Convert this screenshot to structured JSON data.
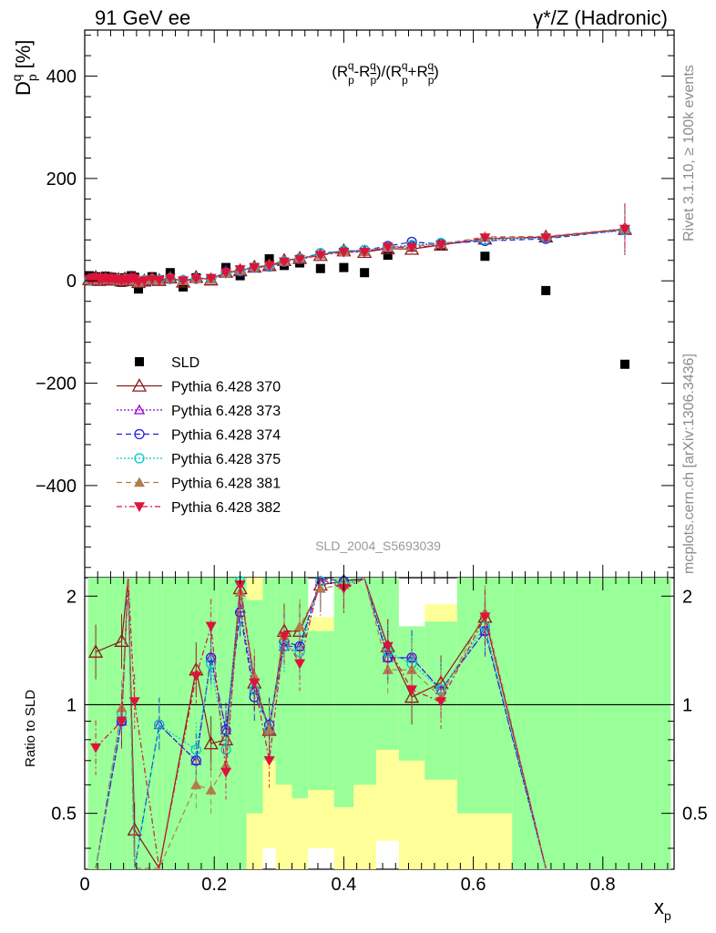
{
  "header": {
    "left_title": "91 GeV ee",
    "right_title": "γ*/Z (Hadronic)"
  },
  "side_labels": {
    "rivet": "Rivet 3.1.10, ≥ 100k events",
    "mcplots": "mcplots.cern.ch [arXiv:1306.3436]"
  },
  "watermark": "SLD_2004_S5693039",
  "colors": {
    "SLD": "#000000",
    "p370": "#8b1a1a",
    "p373": "#9400d3",
    "p374": "#1f1fd6",
    "p375": "#00c8c8",
    "p381": "#b07d4f",
    "p382": "#dc143c",
    "band_green": "#99ff99",
    "band_yellow": "#ffff99"
  },
  "chart_data": [
    {
      "type": "scatter",
      "title": "(R_p^q-R_p̄^q)/(R_p^q+R_p̄^q)",
      "ylabel": "D_p^q [%]",
      "xlabel": "x_p",
      "xlim": [
        0,
        0.91
      ],
      "ylim": [
        -580,
        490
      ],
      "y_ticks": [
        -400,
        -200,
        0,
        200,
        400
      ],
      "y_tick_labels": [
        "−400",
        "−200",
        "0",
        "200",
        "400"
      ],
      "legend_position": "lower-left",
      "x": [
        0.007,
        0.012,
        0.017,
        0.022,
        0.027,
        0.032,
        0.037,
        0.042,
        0.047,
        0.052,
        0.057,
        0.062,
        0.067,
        0.072,
        0.077,
        0.083,
        0.092,
        0.104,
        0.115,
        0.132,
        0.152,
        0.172,
        0.195,
        0.218,
        0.24,
        0.262,
        0.285,
        0.308,
        0.332,
        0.364,
        0.4,
        0.432,
        0.468,
        0.505,
        0.55,
        0.618,
        0.712,
        0.834
      ],
      "series": [
        {
          "name": "SLD",
          "marker": "square",
          "values": [
            10,
            5,
            8,
            2,
            6,
            9,
            4,
            7,
            3,
            5,
            -3,
            6,
            2,
            10,
            7,
            -16,
            -2,
            8,
            2,
            16,
            -12,
            6,
            3,
            26,
            10,
            26,
            43,
            30,
            35,
            24,
            26,
            16,
            50,
            66,
            70,
            48,
            -19,
            -163
          ]
        },
        {
          "name": "Pythia 6.428 370",
          "marker": "open-triangle",
          "values": [
            3,
            2,
            7,
            1,
            3,
            5,
            2,
            4,
            2,
            3,
            0,
            4,
            1,
            6,
            5,
            -3,
            0,
            4,
            1,
            6,
            -2,
            7,
            2,
            17,
            20,
            27,
            30,
            40,
            44,
            50,
            59,
            56,
            63,
            62,
            70,
            82,
            86,
            101
          ]
        },
        {
          "name": "Pythia 6.428 373",
          "marker": "open-triangle-small",
          "values": [
            2,
            3,
            5,
            2,
            3,
            4,
            3,
            3,
            2,
            3,
            1,
            3,
            2,
            4,
            3,
            -2,
            1,
            3,
            2,
            5,
            1,
            4,
            4,
            14,
            20,
            25,
            29,
            38,
            44,
            52,
            57,
            58,
            64,
            70,
            72,
            79,
            85,
            98
          ]
        },
        {
          "name": "Pythia 6.428 374",
          "marker": "open-circle",
          "values": [
            2,
            3,
            4,
            2,
            3,
            4,
            3,
            3,
            2,
            3,
            1,
            3,
            2,
            4,
            3,
            -3,
            1,
            2,
            2,
            4,
            1,
            4,
            4,
            17,
            18,
            26,
            28,
            37,
            43,
            54,
            58,
            60,
            68,
            76,
            72,
            78,
            82,
            100
          ]
        },
        {
          "name": "Pythia 6.428 375",
          "marker": "open-circle",
          "values": [
            2,
            2,
            4,
            2,
            3,
            4,
            3,
            3,
            2,
            3,
            1,
            3,
            2,
            4,
            3,
            -2,
            1,
            3,
            2,
            5,
            1,
            4,
            4,
            15,
            20,
            26,
            29,
            38,
            44,
            54,
            59,
            60,
            66,
            70,
            74,
            80,
            84,
            99
          ]
        },
        {
          "name": "Pythia 6.428 381",
          "marker": "filled-triangle",
          "values": [
            2,
            2,
            5,
            2,
            3,
            4,
            3,
            3,
            2,
            3,
            1,
            3,
            2,
            4,
            3,
            -3,
            1,
            3,
            1,
            5,
            0,
            4,
            3,
            15,
            21,
            27,
            31,
            38,
            44,
            51,
            57,
            57,
            66,
            67,
            72,
            86,
            87,
            102
          ]
        },
        {
          "name": "Pythia 6.428 382",
          "marker": "filled-triangle-down",
          "values": [
            3,
            2,
            6,
            1,
            3,
            5,
            2,
            4,
            2,
            3,
            0,
            3,
            1,
            5,
            4,
            -3,
            0,
            3,
            1,
            5,
            0,
            4,
            5,
            16,
            22,
            26,
            30,
            37,
            42,
            50,
            56,
            56,
            66,
            65,
            70,
            84,
            84,
            101
          ]
        }
      ]
    },
    {
      "type": "line",
      "ylabel": "Ratio to SLD",
      "xlabel": "x_p",
      "xlim": [
        0,
        0.91
      ],
      "ylim": [
        0.35,
        2.25
      ],
      "y_ticks": [
        0.5,
        1,
        2
      ],
      "y_tick_labels": [
        "0.5",
        "1",
        "2"
      ],
      "x_ticks": [
        0,
        0.2,
        0.4,
        0.6,
        0.8
      ],
      "x_tick_labels": [
        "0",
        "0.2",
        "0.4",
        "0.6",
        "0.8"
      ],
      "x": [
        0.017,
        0.057,
        0.067,
        0.077,
        0.115,
        0.172,
        0.195,
        0.218,
        0.24,
        0.262,
        0.285,
        0.308,
        0.332,
        0.364,
        0.4,
        0.432,
        0.468,
        0.505,
        0.55,
        0.618,
        0.712
      ],
      "series": [
        {
          "name": "Pythia 6.428 370",
          "values": [
            1.4,
            1.5,
            2.4,
            0.45,
            0.2,
            1.25,
            0.78,
            0.8,
            2.1,
            1.15,
            0.85,
            1.6,
            1.6,
            2.15,
            2.2,
            2.6,
            1.45,
            1.05,
            1.15,
            1.75,
            0.2
          ]
        },
        {
          "name": "Pythia 6.428 373",
          "values": [
            0.3,
            0.9,
            2.3,
            0.3,
            0.88,
            0.7,
            1.35,
            0.85,
            1.85,
            1.1,
            0.87,
            1.45,
            1.45,
            2.2,
            2.15,
            2.6,
            1.35,
            1.35,
            1.1,
            1.6,
            0.2
          ]
        },
        {
          "name": "Pythia 6.428 374",
          "values": [
            0.3,
            0.9,
            2.3,
            0.3,
            0.88,
            0.7,
            1.35,
            0.85,
            1.8,
            1.05,
            0.88,
            1.5,
            1.45,
            2.25,
            2.2,
            2.6,
            1.35,
            1.35,
            1.1,
            1.6,
            0.2
          ]
        },
        {
          "name": "Pythia 6.428 375",
          "values": [
            0.3,
            0.95,
            2.3,
            0.3,
            0.88,
            0.75,
            1.3,
            0.75,
            2.2,
            1.1,
            0.85,
            1.45,
            1.4,
            2.2,
            2.15,
            2.6,
            1.4,
            1.3,
            1.1,
            1.65,
            0.2
          ]
        },
        {
          "name": "Pythia 6.428 381",
          "values": [
            0.3,
            0.98,
            2.3,
            0.3,
            0.2,
            0.6,
            0.58,
            0.68,
            2.05,
            1.2,
            0.85,
            1.55,
            1.65,
            2.1,
            2.15,
            2.6,
            1.25,
            1.25,
            1.05,
            1.8,
            0.2
          ]
        },
        {
          "name": "Pythia 6.428 382",
          "values": [
            0.76,
            0.9,
            2.3,
            1.02,
            0.2,
            1.2,
            1.65,
            0.65,
            2.15,
            1.15,
            0.7,
            1.55,
            1.3,
            2.25,
            2.1,
            2.6,
            1.45,
            1.1,
            1.02,
            1.75,
            0.2
          ]
        }
      ]
    }
  ]
}
